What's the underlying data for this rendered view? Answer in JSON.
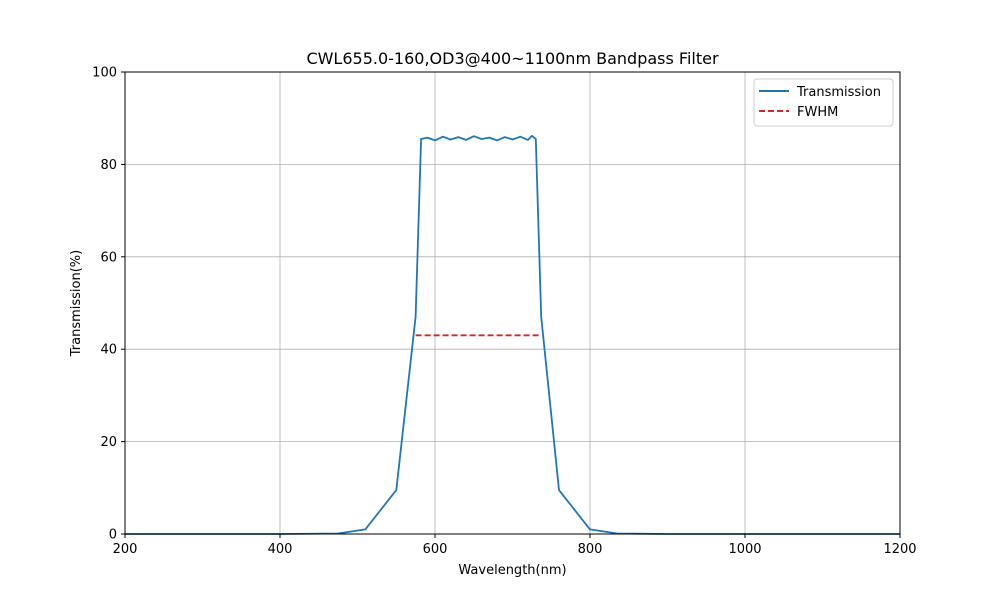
{
  "chart_data": {
    "type": "line",
    "title": "CWL655.0-160,OD3@400~1100nm Bandpass Filter",
    "xlabel": "Wavelength(nm)",
    "ylabel": "Transmission(%)",
    "xlim": [
      200,
      1200
    ],
    "ylim": [
      0,
      100
    ],
    "xticks": [
      200,
      400,
      600,
      800,
      1000,
      1200
    ],
    "yticks": [
      0,
      20,
      40,
      60,
      80,
      100
    ],
    "grid": true,
    "legend_position": "top-right",
    "series": [
      {
        "name": "Transmission",
        "style": "solid",
        "color": "#1f77b4",
        "x": [
          200,
          300,
          400,
          475,
          510,
          550,
          575,
          582,
          590,
          600,
          610,
          620,
          630,
          640,
          650,
          660,
          670,
          680,
          690,
          700,
          710,
          720,
          725,
          730,
          737,
          760,
          800,
          835,
          900,
          1000,
          1100,
          1200
        ],
        "y": [
          0,
          0,
          0,
          0.1,
          1,
          9.5,
          47,
          85.5,
          85.8,
          85.2,
          86,
          85.4,
          85.9,
          85.3,
          86.1,
          85.5,
          85.8,
          85.2,
          85.9,
          85.4,
          86,
          85.3,
          86.2,
          85.5,
          47,
          9.5,
          1,
          0.1,
          0,
          0,
          0,
          0
        ]
      },
      {
        "name": "FWHM",
        "style": "dashed",
        "color": "#d62728",
        "x": [
          575,
          737
        ],
        "y": [
          43,
          43
        ]
      }
    ]
  }
}
